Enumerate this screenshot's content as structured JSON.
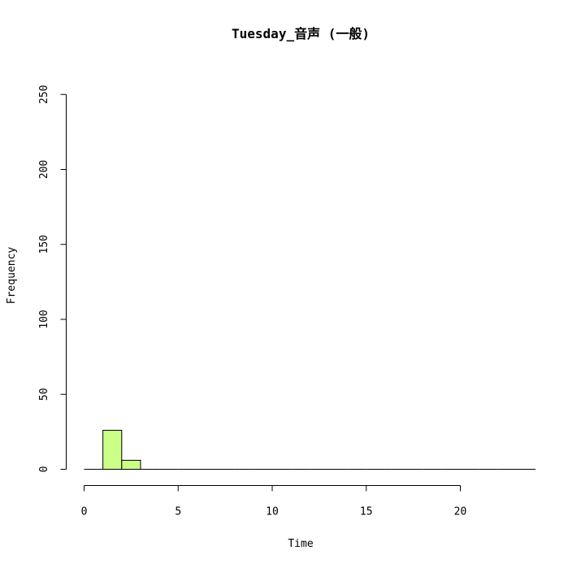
{
  "chart_data": {
    "type": "bar",
    "title": "Tuesday_音声 (一般)",
    "xlabel": "Time",
    "ylabel": "Frequency",
    "bins": [
      {
        "start": 0,
        "end": 1,
        "count": 0
      },
      {
        "start": 1,
        "end": 2,
        "count": 26
      },
      {
        "start": 2,
        "end": 3,
        "count": 6
      },
      {
        "start": 3,
        "end": 4,
        "count": 0
      },
      {
        "start": 4,
        "end": 5,
        "count": 0
      },
      {
        "start": 5,
        "end": 6,
        "count": 0
      },
      {
        "start": 6,
        "end": 7,
        "count": 0
      },
      {
        "start": 7,
        "end": 8,
        "count": 0
      },
      {
        "start": 8,
        "end": 9,
        "count": 0
      },
      {
        "start": 9,
        "end": 10,
        "count": 0
      },
      {
        "start": 10,
        "end": 11,
        "count": 0
      },
      {
        "start": 11,
        "end": 12,
        "count": 0
      },
      {
        "start": 12,
        "end": 13,
        "count": 0
      },
      {
        "start": 13,
        "end": 14,
        "count": 0
      },
      {
        "start": 14,
        "end": 15,
        "count": 0
      },
      {
        "start": 15,
        "end": 16,
        "count": 0
      },
      {
        "start": 16,
        "end": 17,
        "count": 0
      },
      {
        "start": 17,
        "end": 18,
        "count": 0
      },
      {
        "start": 18,
        "end": 19,
        "count": 0
      },
      {
        "start": 19,
        "end": 20,
        "count": 0
      },
      {
        "start": 20,
        "end": 21,
        "count": 0
      },
      {
        "start": 21,
        "end": 22,
        "count": 0
      },
      {
        "start": 22,
        "end": 23,
        "count": 0
      },
      {
        "start": 23,
        "end": 24,
        "count": 0
      }
    ],
    "xlim": [
      0,
      24
    ],
    "ylim": [
      0,
      250
    ],
    "xticks": [
      0,
      5,
      10,
      15,
      20
    ],
    "yticks": [
      0,
      50,
      100,
      150,
      200,
      250
    ],
    "xtick_labels": [
      "0",
      "5",
      "10",
      "15",
      "20"
    ],
    "ytick_labels": [
      "0",
      "50",
      "100",
      "150",
      "200",
      "250"
    ],
    "bar_color": "#ccff88",
    "grid": false,
    "legend": "none"
  }
}
